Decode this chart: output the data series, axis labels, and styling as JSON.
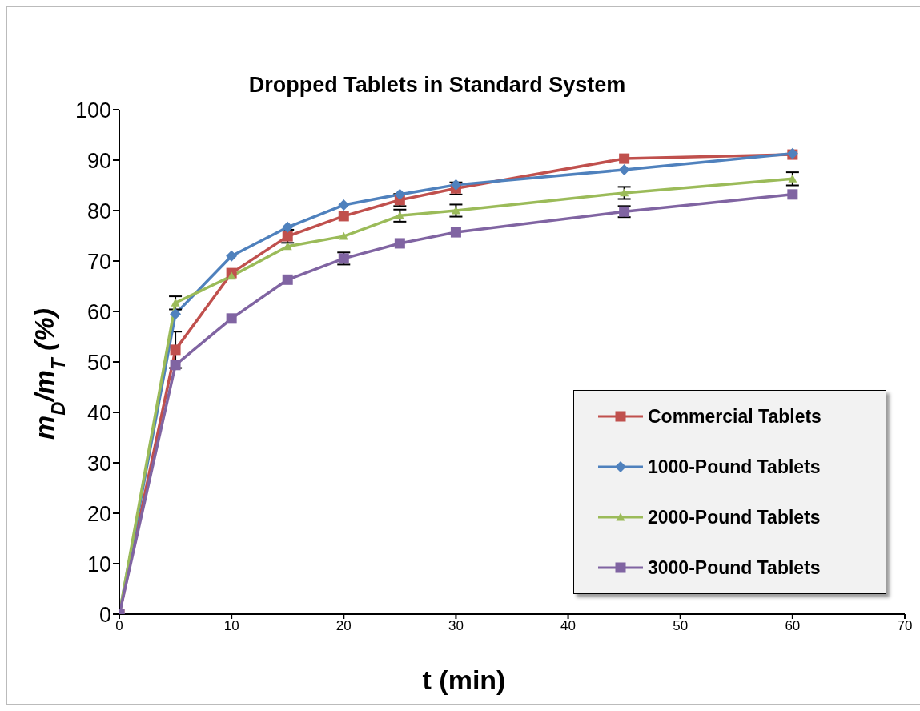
{
  "chart_data": {
    "type": "line",
    "title": "Dropped Tablets in Standard System",
    "xlabel": "t (min)",
    "ylabel": "m$_{D}$/m$_{T}$ (%)",
    "x": [
      0,
      5,
      10,
      15,
      20,
      25,
      30,
      45,
      60
    ],
    "series": [
      {
        "name": "Commercial Tablets",
        "color": "#c0504d",
        "marker": "square",
        "values": [
          0,
          52.4,
          67.6,
          74.9,
          78.9,
          82.1,
          84.4,
          90.3,
          91.1
        ],
        "errors": [
          null,
          3.6,
          null,
          1.3,
          null,
          1.2,
          1.2,
          null,
          null
        ]
      },
      {
        "name": "1000-Pound Tablets",
        "color": "#4f81bd",
        "marker": "diamond",
        "values": [
          0,
          59.5,
          71,
          76.7,
          81.1,
          83.2,
          85.1,
          88.1,
          91.3
        ]
      },
      {
        "name": "2000-Pound Tablets",
        "color": "#9bbb59",
        "marker": "triangle",
        "values": [
          0,
          61.7,
          67,
          72.9,
          74.9,
          79,
          80,
          83.5,
          86.3
        ],
        "errors": [
          null,
          1.3,
          null,
          null,
          null,
          1.2,
          1.2,
          1.2,
          1.3
        ]
      },
      {
        "name": "3000-Pound Tablets",
        "color": "#8064a2",
        "marker": "square",
        "values": [
          0,
          49.4,
          58.6,
          66.3,
          70.5,
          73.5,
          75.7,
          79.8,
          83.2
        ],
        "errors": [
          null,
          null,
          null,
          null,
          1.2,
          null,
          null,
          1.1,
          null
        ]
      }
    ],
    "xlim": [
      0,
      70
    ],
    "xticks": [
      0,
      10,
      20,
      30,
      40,
      50,
      60,
      70
    ],
    "ylim": [
      0,
      100
    ],
    "yticks": [
      0,
      10,
      20,
      30,
      40,
      50,
      60,
      70,
      80,
      90,
      100
    ],
    "grid": false,
    "legend": "bottom right",
    "line_style": "solid"
  }
}
